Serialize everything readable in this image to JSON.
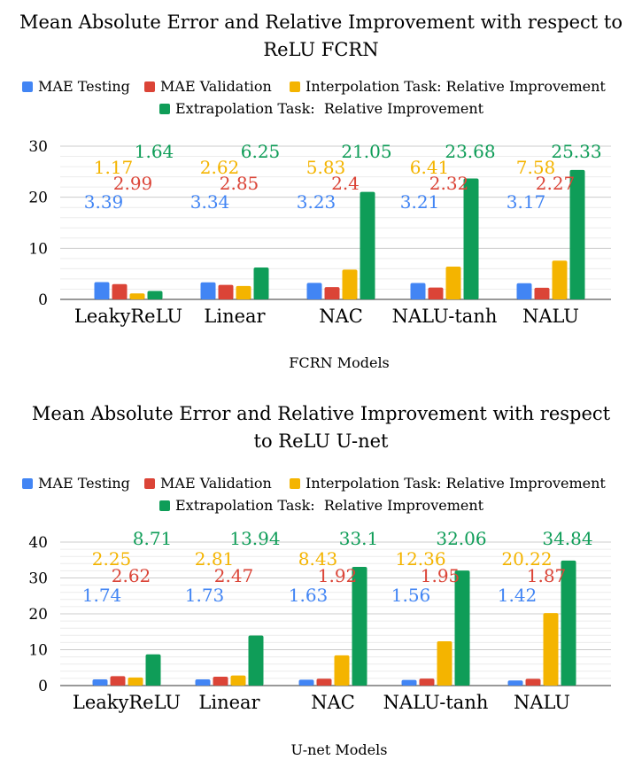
{
  "colors": {
    "mae_testing": "#4285F4",
    "mae_validation": "#DB4437",
    "interpolation": "#F4B400",
    "extrapolation": "#0F9D58",
    "gridline": "#d9d9d9",
    "text": "#000000"
  },
  "chart_data": [
    {
      "type": "bar",
      "title_lines": [
        "Mean Absolute Error and Relative Improvement with respect to",
        "ReLU FCRN"
      ],
      "xlabel": "FCRN Models",
      "ylabel": "",
      "categories": [
        "LeakyReLU",
        "Linear",
        "NAC",
        "NALU-tanh",
        "NALU"
      ],
      "series": [
        {
          "name": "MAE Testing",
          "color_key": "mae_testing",
          "values": [
            3.39,
            3.34,
            3.23,
            3.21,
            3.17
          ],
          "labels": [
            "3.39",
            "3.34",
            "3.23",
            "3.21",
            "3.17"
          ]
        },
        {
          "name": "MAE Validation",
          "color_key": "mae_validation",
          "values": [
            2.99,
            2.85,
            2.4,
            2.32,
            2.27
          ],
          "labels": [
            "2.99",
            "2.85",
            "2.4",
            "2.32",
            "2.27"
          ]
        },
        {
          "name": "Interpolation Task: Relative Improvement",
          "color_key": "interpolation",
          "values": [
            1.17,
            2.62,
            5.83,
            6.41,
            7.58
          ],
          "labels": [
            "1.17",
            "2.62",
            "5.83",
            "6.41",
            "7.58"
          ]
        },
        {
          "name": "Extrapolation Task:  Relative Improvement",
          "color_key": "extrapolation",
          "values": [
            1.64,
            6.25,
            21.05,
            23.68,
            25.33
          ],
          "labels": [
            "1.64",
            "6.25",
            "21.05",
            "23.68",
            "25.33"
          ]
        }
      ],
      "ylim": [
        0,
        30
      ],
      "yticks": [
        "0",
        "10",
        "20",
        "30"
      ],
      "grid": true,
      "legend_position": "top"
    },
    {
      "type": "bar",
      "title_lines": [
        "Mean Absolute Error and Relative Improvement with respect",
        "to ReLU U-net"
      ],
      "xlabel": "U-net Models",
      "ylabel": "",
      "categories": [
        "LeakyReLU",
        "Linear",
        "NAC",
        "NALU-tanh",
        "NALU"
      ],
      "series": [
        {
          "name": "MAE Testing",
          "color_key": "mae_testing",
          "values": [
            1.74,
            1.73,
            1.63,
            1.56,
            1.42
          ],
          "labels": [
            "1.74",
            "1.73",
            "1.63",
            "1.56",
            "1.42"
          ]
        },
        {
          "name": "MAE Validation",
          "color_key": "mae_validation",
          "values": [
            2.62,
            2.47,
            1.92,
            1.95,
            1.87
          ],
          "labels": [
            "2.62",
            "2.47",
            "1.92",
            "1.95",
            "1.87"
          ]
        },
        {
          "name": "Interpolation Task: Relative Improvement",
          "color_key": "interpolation",
          "values": [
            2.25,
            2.81,
            8.43,
            12.36,
            20.22
          ],
          "labels": [
            "2.25",
            "2.81",
            "8.43",
            "12.36",
            "20.22"
          ]
        },
        {
          "name": "Extrapolation Task:  Relative Improvement",
          "color_key": "extrapolation",
          "values": [
            8.71,
            13.94,
            33.1,
            32.06,
            34.84
          ],
          "labels": [
            "8.71",
            "13.94",
            "33.1",
            "32.06",
            "34.84"
          ]
        }
      ],
      "ylim": [
        0,
        40
      ],
      "yticks": [
        "0",
        "10",
        "20",
        "30",
        "40"
      ],
      "grid": true,
      "legend_position": "top"
    }
  ]
}
